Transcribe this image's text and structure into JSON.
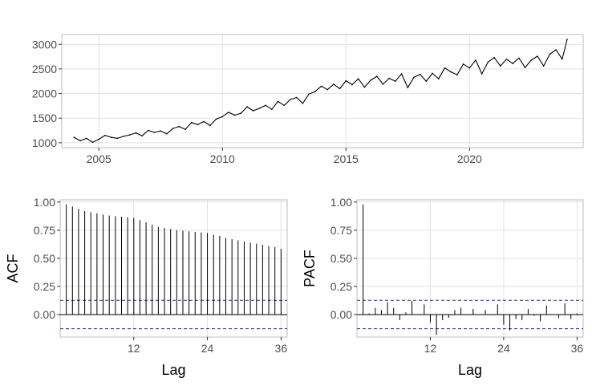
{
  "chart_data": [
    {
      "type": "line",
      "title": "",
      "xlabel": "",
      "ylabel": "",
      "xlim": [
        2003.5,
        2024.6
      ],
      "ylim": [
        900,
        3200
      ],
      "x_ticks": [
        2005,
        2010,
        2015,
        2020
      ],
      "x_tick_labels": [
        "2005",
        "2010",
        "2015",
        "2020"
      ],
      "y_ticks": [
        1000,
        1500,
        2000,
        2500,
        3000
      ],
      "y_tick_labels": [
        "1000",
        "1500",
        "2000",
        "2500",
        "3000"
      ],
      "grid": true,
      "series": [
        {
          "x": [
            2004.0,
            2004.25,
            2004.5,
            2004.75,
            2005.0,
            2005.25,
            2005.5,
            2005.75,
            2006.0,
            2006.25,
            2006.5,
            2006.75,
            2007.0,
            2007.25,
            2007.5,
            2007.75,
            2008.0,
            2008.25,
            2008.5,
            2008.75,
            2009.0,
            2009.25,
            2009.5,
            2009.75,
            2010.0,
            2010.25,
            2010.5,
            2010.75,
            2011.0,
            2011.25,
            2011.5,
            2011.75,
            2012.0,
            2012.25,
            2012.5,
            2012.75,
            2013.0,
            2013.25,
            2013.5,
            2013.75,
            2014.0,
            2014.25,
            2014.5,
            2014.75,
            2015.0,
            2015.25,
            2015.5,
            2015.75,
            2016.0,
            2016.25,
            2016.5,
            2016.75,
            2017.0,
            2017.25,
            2017.5,
            2017.75,
            2018.0,
            2018.25,
            2018.5,
            2018.75,
            2019.0,
            2019.25,
            2019.5,
            2019.75,
            2020.0,
            2020.25,
            2020.5,
            2020.75,
            2021.0,
            2021.25,
            2021.5,
            2021.75,
            2022.0,
            2022.25,
            2022.5,
            2022.75,
            2023.0,
            2023.25,
            2023.5,
            2023.75,
            2023.95
          ],
          "y": [
            1110,
            1040,
            1090,
            1010,
            1070,
            1150,
            1110,
            1090,
            1130,
            1160,
            1200,
            1140,
            1250,
            1210,
            1240,
            1180,
            1290,
            1330,
            1270,
            1410,
            1370,
            1430,
            1350,
            1480,
            1530,
            1620,
            1560,
            1600,
            1730,
            1650,
            1700,
            1760,
            1680,
            1840,
            1760,
            1880,
            1920,
            1800,
            1990,
            2040,
            2150,
            2080,
            2190,
            2100,
            2260,
            2180,
            2300,
            2130,
            2270,
            2350,
            2190,
            2310,
            2250,
            2400,
            2120,
            2330,
            2390,
            2250,
            2410,
            2300,
            2520,
            2440,
            2380,
            2600,
            2520,
            2680,
            2400,
            2640,
            2730,
            2560,
            2700,
            2610,
            2720,
            2530,
            2680,
            2760,
            2560,
            2800,
            2890,
            2700,
            3100
          ]
        }
      ]
    },
    {
      "type": "bar",
      "title": "",
      "xlabel": "Lag",
      "ylabel": "ACF",
      "xlim": [
        0,
        37
      ],
      "ylim": [
        -0.2,
        1.02
      ],
      "x_ticks": [
        12,
        24,
        36
      ],
      "x_tick_labels": [
        "12",
        "24",
        "36"
      ],
      "y_ticks": [
        0,
        0.25,
        0.5,
        0.75,
        1.0
      ],
      "y_tick_labels": [
        "0.00",
        "0.25",
        "0.50",
        "0.75",
        "1.00"
      ],
      "grid": true,
      "confidence_bound": 0.126,
      "lags": [
        1,
        2,
        3,
        4,
        5,
        6,
        7,
        8,
        9,
        10,
        11,
        12,
        13,
        14,
        15,
        16,
        17,
        18,
        19,
        20,
        21,
        22,
        23,
        24,
        25,
        26,
        27,
        28,
        29,
        30,
        31,
        32,
        33,
        34,
        35,
        36
      ],
      "values": [
        0.98,
        0.96,
        0.94,
        0.92,
        0.91,
        0.9,
        0.89,
        0.88,
        0.875,
        0.87,
        0.865,
        0.86,
        0.84,
        0.82,
        0.8,
        0.78,
        0.77,
        0.76,
        0.75,
        0.745,
        0.74,
        0.735,
        0.73,
        0.725,
        0.71,
        0.7,
        0.68,
        0.67,
        0.66,
        0.65,
        0.64,
        0.63,
        0.62,
        0.61,
        0.6,
        0.585
      ]
    },
    {
      "type": "bar",
      "title": "",
      "xlabel": "Lag",
      "ylabel": "PACF",
      "xlim": [
        0,
        37
      ],
      "ylim": [
        -0.2,
        1.02
      ],
      "x_ticks": [
        12,
        24,
        36
      ],
      "x_tick_labels": [
        "12",
        "24",
        "36"
      ],
      "y_ticks": [
        0,
        0.25,
        0.5,
        0.75,
        1.0
      ],
      "y_tick_labels": [
        "0.00",
        "0.25",
        "0.50",
        "0.75",
        "1.00"
      ],
      "grid": true,
      "confidence_bound": 0.126,
      "lags": [
        1,
        2,
        3,
        4,
        5,
        6,
        7,
        8,
        9,
        10,
        11,
        12,
        13,
        14,
        15,
        16,
        17,
        18,
        19,
        20,
        21,
        22,
        23,
        24,
        25,
        26,
        27,
        28,
        29,
        30,
        31,
        32,
        33,
        34,
        35,
        36
      ],
      "values": [
        0.98,
        0.01,
        0.06,
        0.04,
        0.11,
        0.06,
        -0.05,
        0.02,
        0.12,
        0.0,
        0.09,
        -0.07,
        -0.18,
        -0.05,
        -0.03,
        0.04,
        0.06,
        0.0,
        0.05,
        0.0,
        0.04,
        0.0,
        0.09,
        -0.09,
        -0.14,
        -0.04,
        -0.05,
        0.05,
        -0.01,
        -0.06,
        0.08,
        0.0,
        -0.03,
        0.1,
        -0.04,
        0.01
      ]
    }
  ],
  "colors": {
    "line": "#000000",
    "bound": "#2b2b8c",
    "grid": "#e2e2e2",
    "panel_border": "#bdbdbd",
    "tick_text": "#4d4d4d",
    "axis_title": "#000000"
  }
}
